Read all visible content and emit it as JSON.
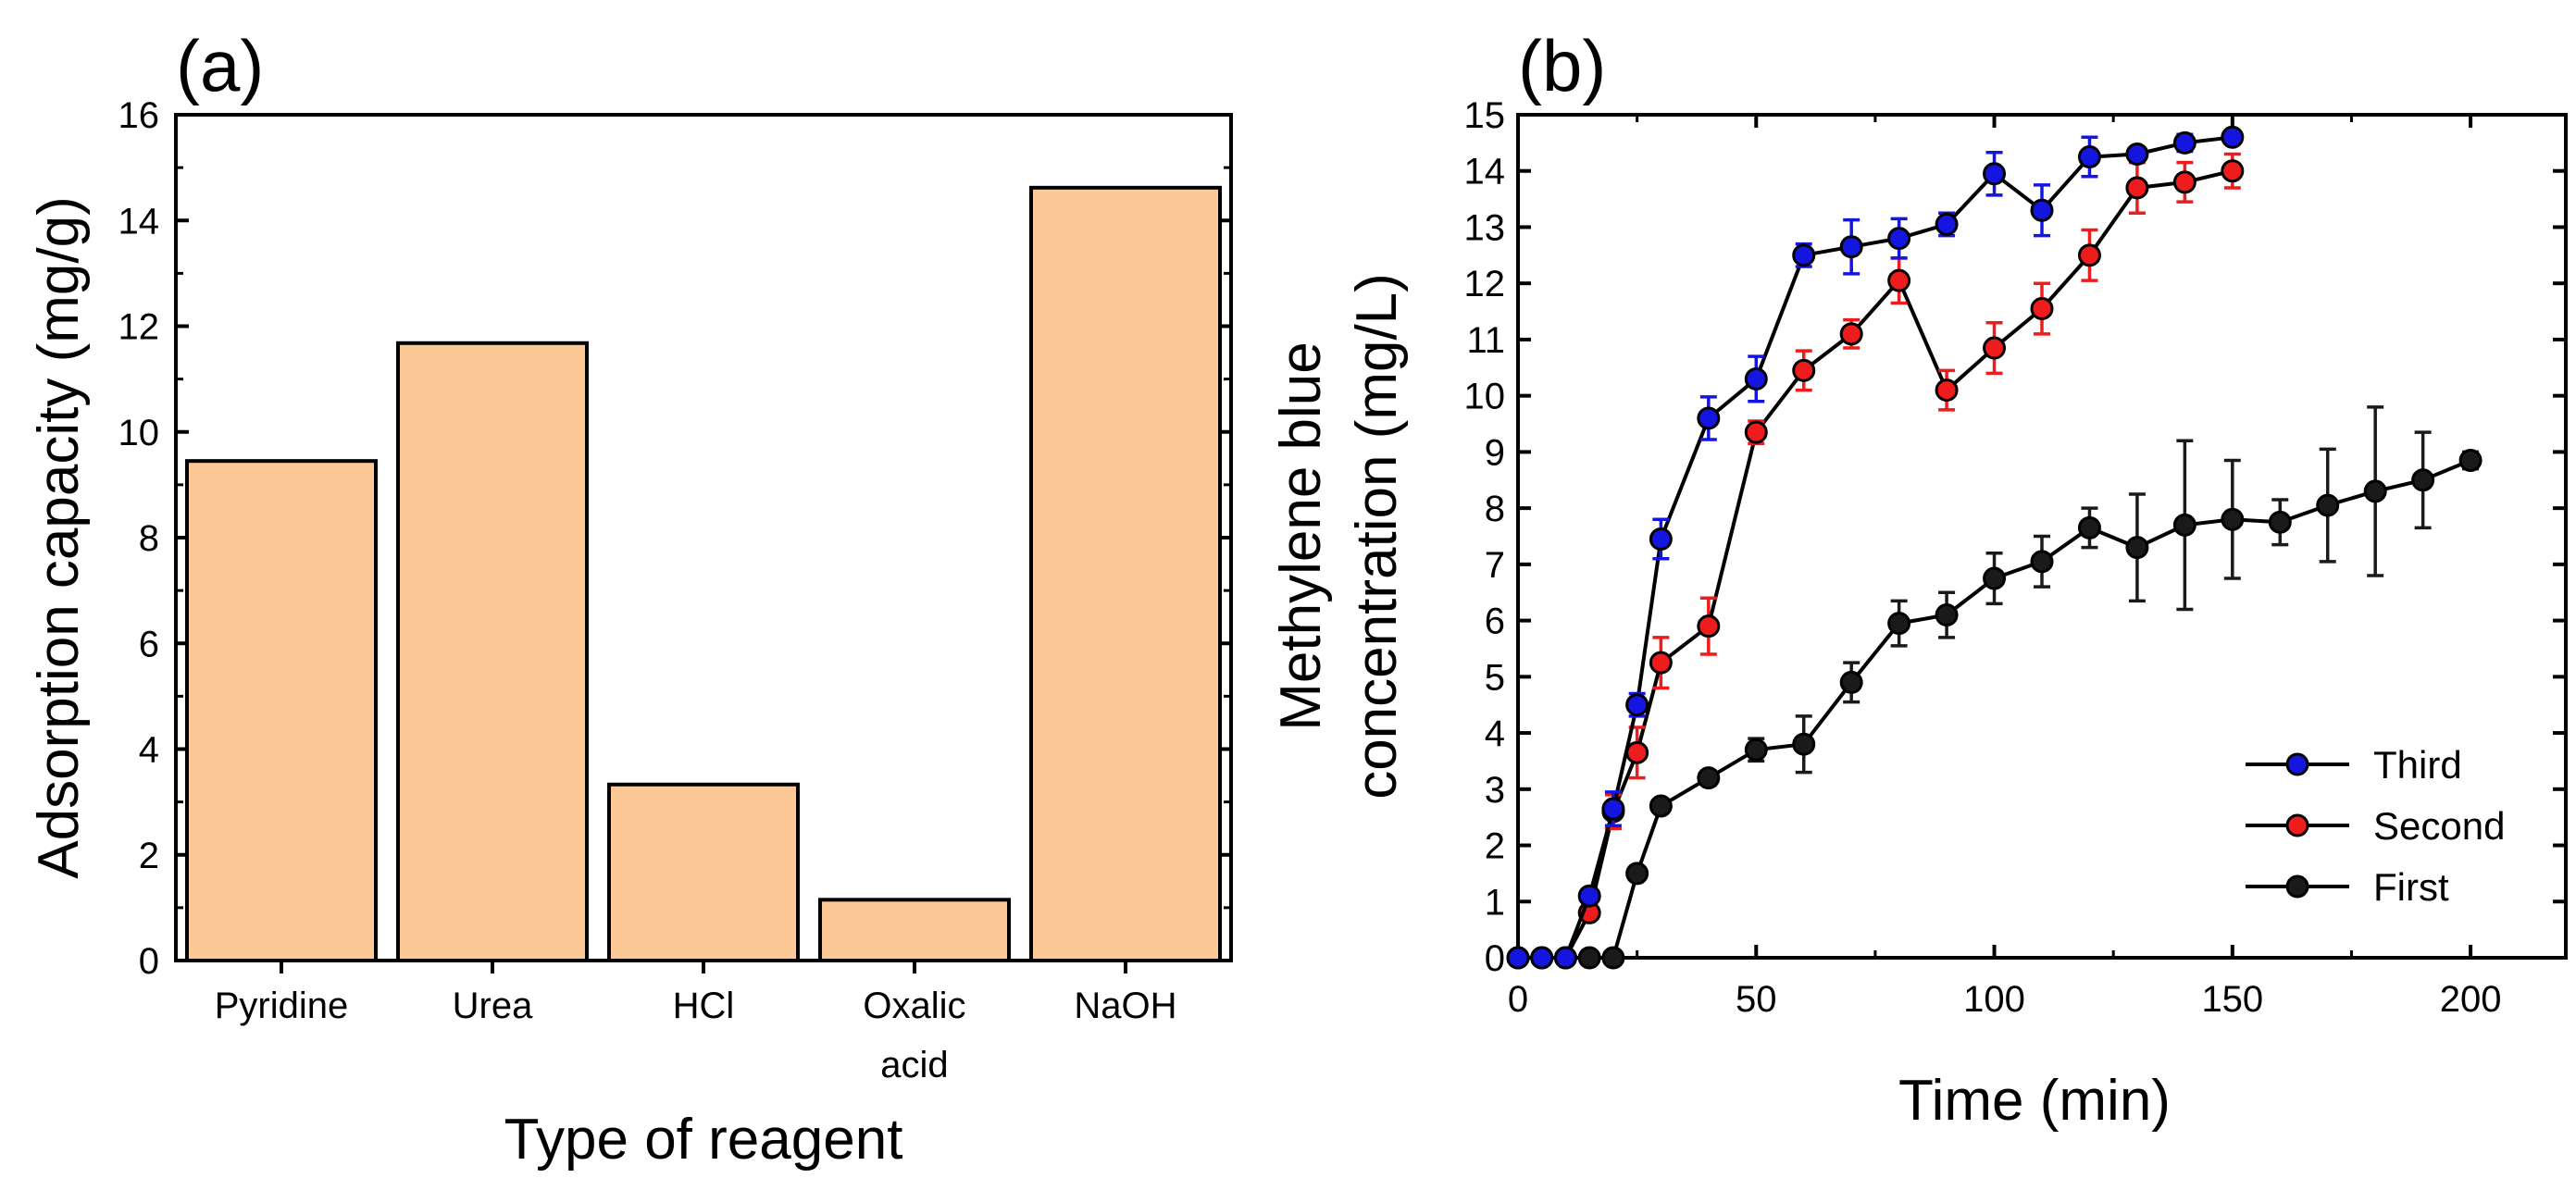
{
  "chart_data": [
    {
      "panel": "(a)",
      "type": "bar",
      "title": "",
      "xlabel": "Type of reagent",
      "ylabel": "Adsorption capacity (mg/g)",
      "categories": [
        [
          "Pyridine"
        ],
        [
          "Urea"
        ],
        [
          "HCl"
        ],
        [
          "Oxalic",
          "acid"
        ],
        [
          "NaOH"
        ]
      ],
      "values": [
        9.45,
        11.68,
        3.33,
        1.15,
        14.62
      ],
      "ylim": [
        0,
        16
      ],
      "yticks": [
        0,
        2,
        4,
        6,
        8,
        10,
        12,
        14,
        16
      ],
      "bar_color": "#FCC896",
      "grid": false
    },
    {
      "panel": "(b)",
      "type": "line",
      "title": "",
      "xlabel": "Time (min)",
      "ylabel": [
        "Methylene blue",
        "concentration (mg/L)"
      ],
      "xlim": [
        0,
        220
      ],
      "ylim": [
        0,
        15
      ],
      "xticks": [
        0,
        50,
        100,
        150,
        200
      ],
      "yticks": [
        0,
        1,
        2,
        3,
        4,
        5,
        6,
        7,
        8,
        9,
        10,
        11,
        12,
        13,
        14,
        15
      ],
      "grid": false,
      "legend_position": "bottom-right",
      "series": [
        {
          "name": "Third",
          "color": "#1515E0",
          "x": [
            0,
            5,
            10,
            15,
            20,
            25,
            30,
            40,
            50,
            60,
            70,
            80,
            90,
            100,
            110,
            120,
            130,
            140,
            150
          ],
          "y": [
            0,
            0,
            0,
            1.1,
            2.65,
            4.5,
            7.45,
            9.6,
            10.3,
            12.5,
            12.65,
            12.8,
            13.05,
            13.95,
            13.3,
            14.25,
            14.3,
            14.5,
            14.6
          ],
          "err": [
            0,
            0,
            0,
            0.12,
            0.3,
            0.2,
            0.35,
            0.38,
            0.4,
            0.2,
            0.48,
            0.35,
            0.2,
            0.38,
            0.45,
            0.35,
            0.1,
            0.15,
            0.1
          ]
        },
        {
          "name": "Second",
          "color": "#EE1C1C",
          "x": [
            0,
            5,
            10,
            15,
            20,
            25,
            30,
            40,
            50,
            60,
            70,
            80,
            90,
            100,
            110,
            120,
            130,
            140,
            150
          ],
          "y": [
            0,
            0,
            0,
            0.8,
            2.6,
            3.65,
            5.25,
            5.9,
            9.35,
            10.45,
            11.1,
            12.05,
            10.1,
            10.85,
            11.55,
            12.5,
            13.7,
            13.8,
            14.0
          ],
          "err": [
            0,
            0,
            0,
            0.1,
            0.3,
            0.45,
            0.45,
            0.5,
            0.2,
            0.35,
            0.25,
            0.4,
            0.35,
            0.45,
            0.45,
            0.45,
            0.45,
            0.35,
            0.3
          ]
        },
        {
          "name": "First",
          "color": "#1a1a1a",
          "x": [
            0,
            5,
            10,
            15,
            20,
            25,
            30,
            40,
            50,
            60,
            70,
            80,
            90,
            100,
            110,
            120,
            130,
            140,
            150,
            160,
            170,
            180,
            190,
            200
          ],
          "y": [
            0,
            0,
            0,
            0,
            0,
            1.5,
            2.7,
            3.2,
            3.7,
            3.8,
            4.9,
            5.95,
            6.1,
            6.75,
            7.05,
            7.65,
            7.3,
            7.7,
            7.8,
            7.75,
            8.05,
            8.3,
            8.5,
            8.85
          ],
          "err": [
            0,
            0,
            0,
            0,
            0,
            0.1,
            0.1,
            0.12,
            0.2,
            0.5,
            0.35,
            0.4,
            0.4,
            0.45,
            0.45,
            0.35,
            0.95,
            1.5,
            1.05,
            0.4,
            1.0,
            1.5,
            0.85,
            0.15
          ]
        }
      ]
    }
  ]
}
